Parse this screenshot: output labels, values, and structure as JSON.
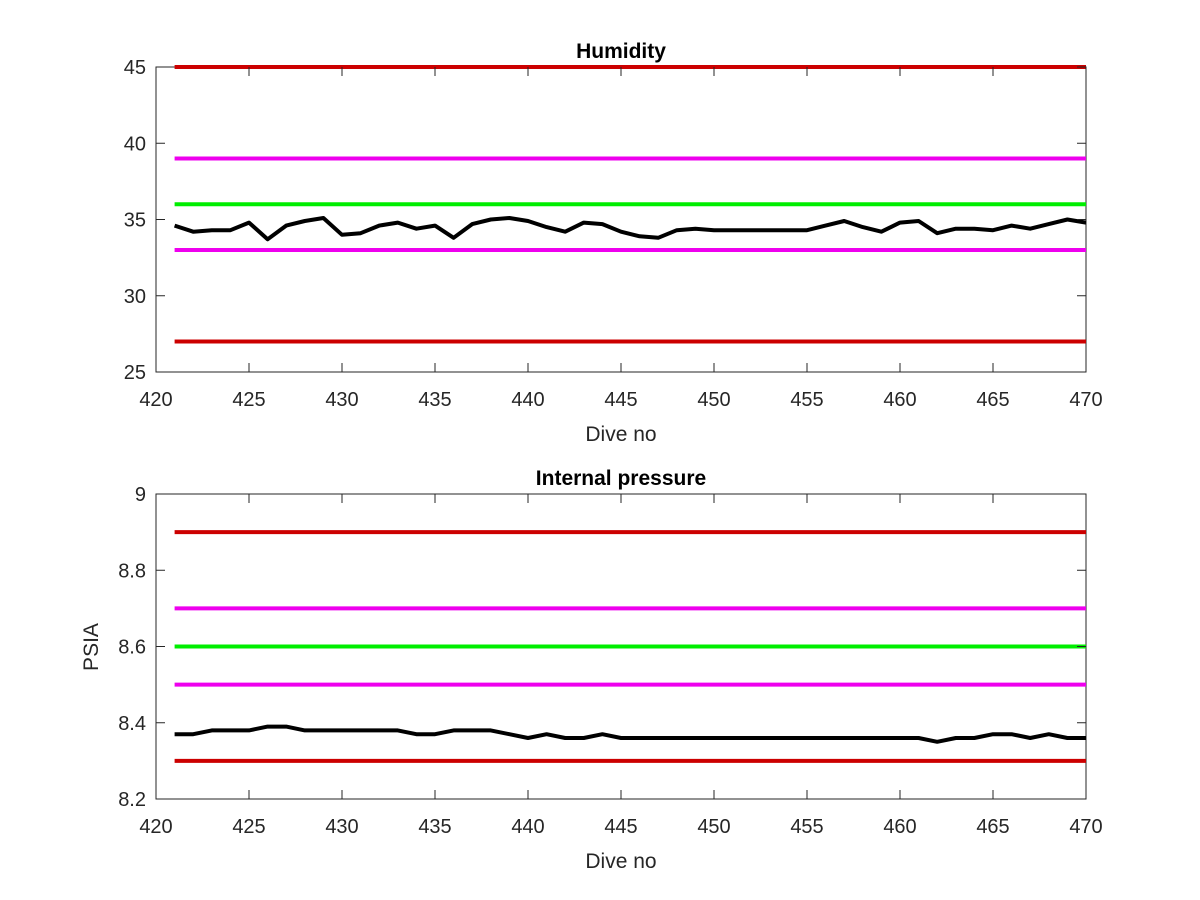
{
  "chart_data": [
    {
      "type": "line",
      "title": "Humidity",
      "xlabel": "Dive no",
      "ylabel": "",
      "xlim": [
        420,
        470
      ],
      "ylim": [
        25,
        45
      ],
      "xticks": [
        420,
        425,
        430,
        435,
        440,
        445,
        450,
        455,
        460,
        465,
        470
      ],
      "yticks": [
        25,
        30,
        35,
        40,
        45
      ],
      "grid": false,
      "legend": "none",
      "thresholds": [
        {
          "value": 45,
          "color": "#cc0000"
        },
        {
          "value": 39,
          "color": "#ee00ee"
        },
        {
          "value": 36,
          "color": "#00ee00"
        },
        {
          "value": 33,
          "color": "#ee00ee"
        },
        {
          "value": 27,
          "color": "#cc0000"
        }
      ],
      "series": [
        {
          "color": "#000000",
          "x": [
            421,
            422,
            423,
            424,
            425,
            426,
            427,
            428,
            429,
            430,
            431,
            432,
            433,
            434,
            435,
            436,
            437,
            438,
            439,
            440,
            441,
            442,
            443,
            444,
            445,
            446,
            447,
            448,
            449,
            450,
            451,
            452,
            453,
            454,
            455,
            456,
            457,
            458,
            459,
            460,
            461,
            462,
            463,
            464,
            465,
            466,
            467,
            468,
            469,
            470
          ],
          "y": [
            34.6,
            34.2,
            34.3,
            34.3,
            34.8,
            33.7,
            34.6,
            34.9,
            35.1,
            34.0,
            34.1,
            34.6,
            34.8,
            34.4,
            34.6,
            33.8,
            34.7,
            35.0,
            35.1,
            34.9,
            34.5,
            34.2,
            34.8,
            34.7,
            34.2,
            33.9,
            33.8,
            34.3,
            34.4,
            34.3,
            34.3,
            34.3,
            34.3,
            34.3,
            34.3,
            34.6,
            34.9,
            34.5,
            34.2,
            34.8,
            34.9,
            34.1,
            34.4,
            34.4,
            34.3,
            34.6,
            34.4,
            34.7,
            35.0,
            34.8
          ]
        }
      ]
    },
    {
      "type": "line",
      "title": "Internal pressure",
      "xlabel": "Dive no",
      "ylabel": "PSIA",
      "xlim": [
        420,
        470
      ],
      "ylim": [
        8.2,
        9
      ],
      "xticks": [
        420,
        425,
        430,
        435,
        440,
        445,
        450,
        455,
        460,
        465,
        470
      ],
      "yticks": [
        8.2,
        8.4,
        8.6,
        8.8,
        9
      ],
      "ytick_labels": [
        "8.2",
        "8.4",
        "8.6",
        "8.8",
        "9"
      ],
      "grid": false,
      "legend": "none",
      "thresholds": [
        {
          "value": 8.9,
          "color": "#cc0000"
        },
        {
          "value": 8.7,
          "color": "#ee00ee"
        },
        {
          "value": 8.6,
          "color": "#00ee00"
        },
        {
          "value": 8.5,
          "color": "#ee00ee"
        },
        {
          "value": 8.3,
          "color": "#cc0000"
        }
      ],
      "series": [
        {
          "color": "#000000",
          "x": [
            421,
            422,
            423,
            424,
            425,
            426,
            427,
            428,
            429,
            430,
            431,
            432,
            433,
            434,
            435,
            436,
            437,
            438,
            439,
            440,
            441,
            442,
            443,
            444,
            445,
            446,
            447,
            448,
            449,
            450,
            451,
            452,
            453,
            454,
            455,
            456,
            457,
            458,
            459,
            460,
            461,
            462,
            463,
            464,
            465,
            466,
            467,
            468,
            469,
            470
          ],
          "y": [
            8.37,
            8.37,
            8.38,
            8.38,
            8.38,
            8.39,
            8.39,
            8.38,
            8.38,
            8.38,
            8.38,
            8.38,
            8.38,
            8.37,
            8.37,
            8.38,
            8.38,
            8.38,
            8.37,
            8.36,
            8.37,
            8.36,
            8.36,
            8.37,
            8.36,
            8.36,
            8.36,
            8.36,
            8.36,
            8.36,
            8.36,
            8.36,
            8.36,
            8.36,
            8.36,
            8.36,
            8.36,
            8.36,
            8.36,
            8.36,
            8.36,
            8.35,
            8.36,
            8.36,
            8.37,
            8.37,
            8.36,
            8.37,
            8.36,
            8.36
          ]
        }
      ]
    }
  ]
}
